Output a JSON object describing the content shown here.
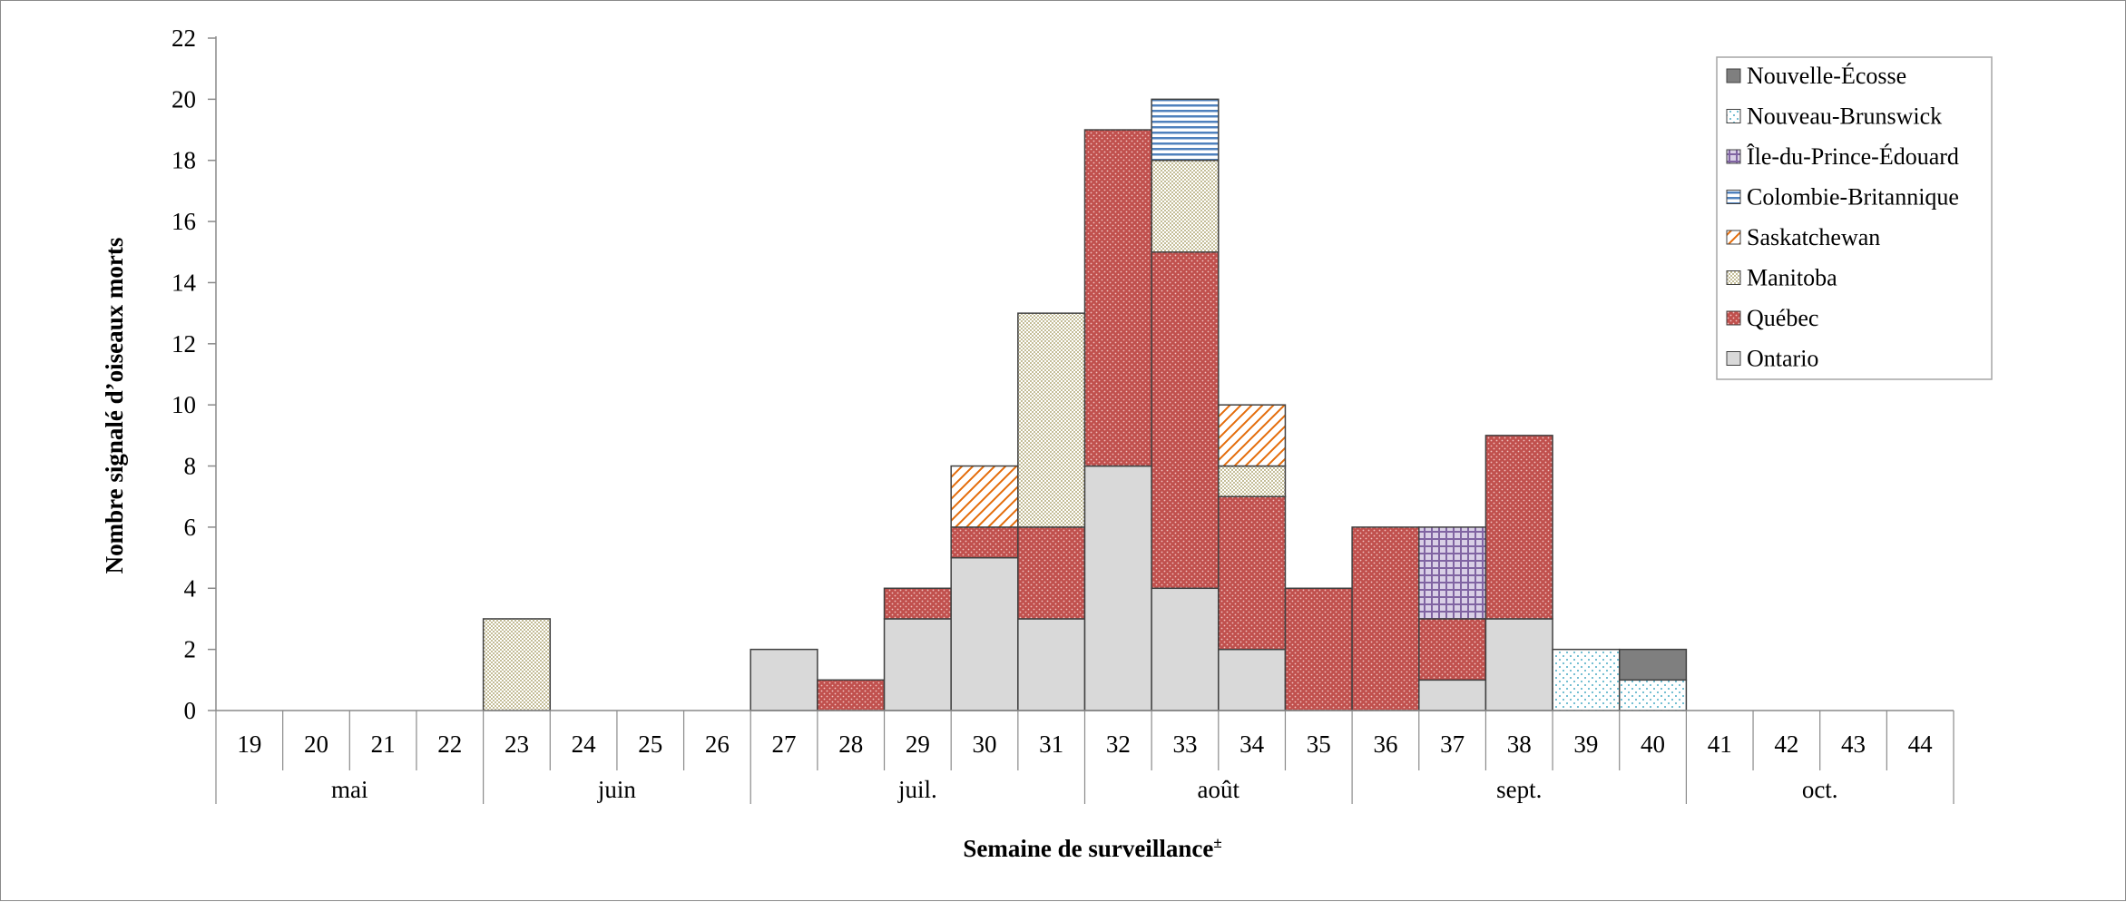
{
  "chart_data": {
    "type": "bar",
    "stacked": true,
    "title": "",
    "xlabel": "Semaine de surveillance",
    "xlabel_superscript": "±",
    "ylabel": "Nombre signalé d’oiseaux morts",
    "ylim": [
      0,
      22
    ],
    "yticks": [
      0,
      2,
      4,
      6,
      8,
      10,
      12,
      14,
      16,
      18,
      20,
      22
    ],
    "grid": false,
    "legend_position": "top-right",
    "categories": [
      "19",
      "20",
      "21",
      "22",
      "23",
      "24",
      "25",
      "26",
      "27",
      "28",
      "29",
      "30",
      "31",
      "32",
      "33",
      "34",
      "35",
      "36",
      "37",
      "38",
      "39",
      "40",
      "41",
      "42",
      "43",
      "44"
    ],
    "months": [
      {
        "label": "mai",
        "weeks": [
          "19",
          "20",
          "21",
          "22"
        ]
      },
      {
        "label": "juin",
        "weeks": [
          "23",
          "24",
          "25",
          "26"
        ]
      },
      {
        "label": "juil.",
        "weeks": [
          "27",
          "28",
          "29",
          "30",
          "31"
        ]
      },
      {
        "label": "août",
        "weeks": [
          "32",
          "33",
          "34",
          "35"
        ]
      },
      {
        "label": "sept.",
        "weeks": [
          "36",
          "37",
          "38",
          "39",
          "40"
        ]
      },
      {
        "label": "oct.",
        "weeks": [
          "41",
          "42",
          "43",
          "44"
        ]
      }
    ],
    "series": [
      {
        "name": "Ontario",
        "color": "#d9d9d9",
        "pattern": "solid",
        "values": [
          0,
          0,
          0,
          0,
          0,
          0,
          0,
          0,
          2,
          0,
          3,
          5,
          3,
          8,
          4,
          2,
          0,
          0,
          1,
          3,
          0,
          0,
          0,
          0,
          0,
          0
        ]
      },
      {
        "name": "Québec",
        "color": "#c0504d",
        "pattern": "dense-dots",
        "values": [
          0,
          0,
          0,
          0,
          0,
          0,
          0,
          0,
          0,
          1,
          1,
          1,
          3,
          11,
          11,
          5,
          4,
          6,
          2,
          6,
          0,
          0,
          0,
          0,
          0,
          0
        ]
      },
      {
        "name": "Manitoba",
        "color": "#c4bd97",
        "pattern": "checker",
        "values": [
          0,
          0,
          0,
          0,
          3,
          0,
          0,
          0,
          0,
          0,
          0,
          0,
          7,
          0,
          3,
          1,
          0,
          0,
          0,
          0,
          0,
          0,
          0,
          0,
          0,
          0
        ]
      },
      {
        "name": "Saskatchewan",
        "color": "#e46c0a",
        "pattern": "diagonal",
        "values": [
          0,
          0,
          0,
          0,
          0,
          0,
          0,
          0,
          0,
          0,
          0,
          2,
          0,
          0,
          0,
          2,
          0,
          0,
          0,
          0,
          0,
          0,
          0,
          0,
          0,
          0
        ]
      },
      {
        "name": "Colombie-Britannique",
        "color": "#4f81bd",
        "pattern": "horizontal",
        "values": [
          0,
          0,
          0,
          0,
          0,
          0,
          0,
          0,
          0,
          0,
          0,
          0,
          0,
          0,
          2,
          0,
          0,
          0,
          0,
          0,
          0,
          0,
          0,
          0,
          0,
          0
        ]
      },
      {
        "name": "Île-du-Prince-Édouard",
        "color": "#8064a2",
        "pattern": "grid",
        "values": [
          0,
          0,
          0,
          0,
          0,
          0,
          0,
          0,
          0,
          0,
          0,
          0,
          0,
          0,
          0,
          0,
          0,
          0,
          3,
          0,
          0,
          0,
          0,
          0,
          0,
          0
        ]
      },
      {
        "name": "Nouveau-Brunswick",
        "color": "#4bacc6",
        "pattern": "sparse-dots",
        "values": [
          0,
          0,
          0,
          0,
          0,
          0,
          0,
          0,
          0,
          0,
          0,
          0,
          0,
          0,
          0,
          0,
          0,
          0,
          0,
          0,
          2,
          1,
          0,
          0,
          0,
          0
        ]
      },
      {
        "name": "Nouvelle-Écosse",
        "color": "#7f7f7f",
        "pattern": "solid",
        "values": [
          0,
          0,
          0,
          0,
          0,
          0,
          0,
          0,
          0,
          0,
          0,
          0,
          0,
          0,
          0,
          0,
          0,
          0,
          0,
          0,
          0,
          1,
          0,
          0,
          0,
          0
        ]
      }
    ],
    "legend_order": [
      "Nouvelle-Écosse",
      "Nouveau-Brunswick",
      "Île-du-Prince-Édouard",
      "Colombie-Britannique",
      "Saskatchewan",
      "Manitoba",
      "Québec",
      "Ontario"
    ]
  }
}
